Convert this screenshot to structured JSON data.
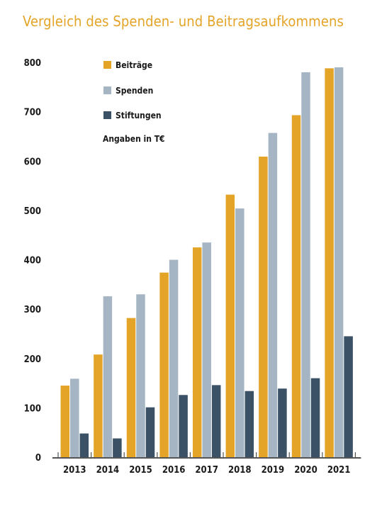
{
  "title": "Vergleich des Spenden- und Beitragsaufkommens",
  "chart_data": {
    "type": "bar",
    "title": "Vergleich des Spenden- und Beitragsaufkommens",
    "categories": [
      "2013",
      "2014",
      "2015",
      "2016",
      "2017",
      "2018",
      "2019",
      "2020",
      "2021"
    ],
    "series": [
      {
        "name": "Beiträge",
        "color": "#e3a428",
        "values": [
          145,
          208,
          282,
          374,
          425,
          532,
          609,
          693,
          788
        ]
      },
      {
        "name": "Spenden",
        "color": "#a6b5c4",
        "values": [
          159,
          326,
          330,
          400,
          435,
          504,
          657,
          780,
          790
        ]
      },
      {
        "name": "Stiftungen",
        "color": "#3a5166",
        "values": [
          48,
          38,
          101,
          126,
          146,
          134,
          139,
          160,
          245
        ]
      }
    ],
    "annotation": "Angaben in T€",
    "ylim": [
      0,
      800
    ],
    "yticks": [
      0,
      100,
      200,
      300,
      400,
      500,
      600,
      700,
      800
    ],
    "grid": false,
    "legend_position": "top-left"
  }
}
